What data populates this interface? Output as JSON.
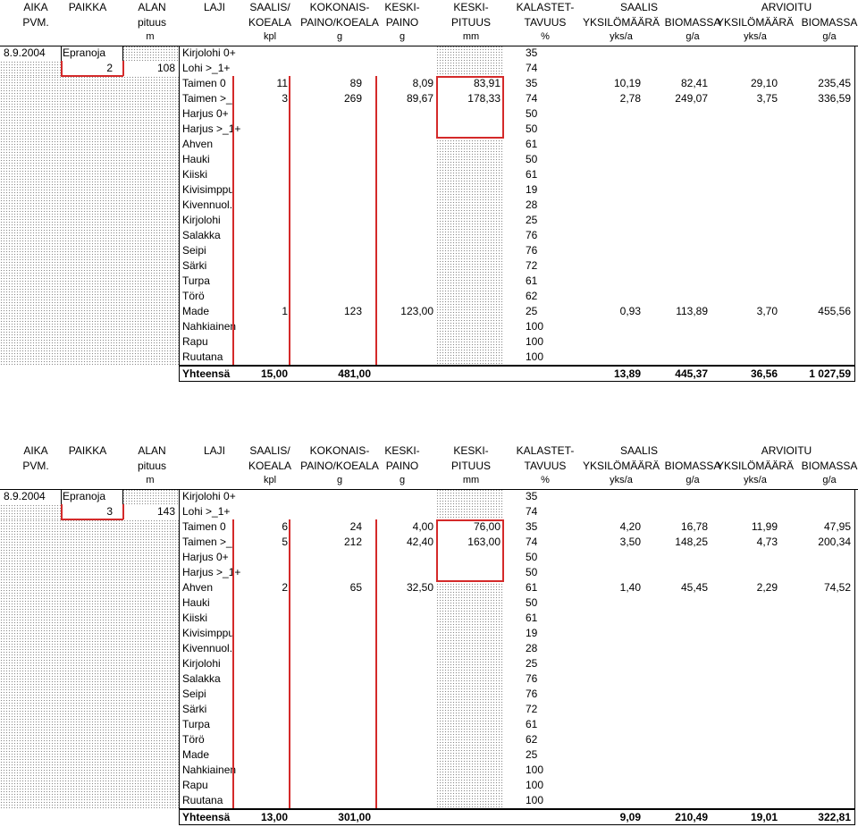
{
  "headers": {
    "row1": [
      "AIKA",
      "PAIKKA",
      "ALAN",
      "LAJI",
      "SAALIS/",
      "KOKONAIS-",
      "KESKI-",
      "KESKI-",
      "KALASTET-",
      "SAALIS",
      "ARVIOITU"
    ],
    "row2": [
      "PVM.",
      "pituus",
      "KOEALA",
      "PAINO/KOEALA",
      "PAINO",
      "PITUUS",
      "TAVUUS",
      "YKSILÖMÄÄRÄ",
      "BIOMASSA",
      "YKSILÖMÄÄRÄ",
      "BIOMASSA"
    ],
    "row3": [
      "m",
      "kpl",
      "g",
      "g",
      "mm",
      "%",
      "yks/a",
      "g/a",
      "yks/a",
      "g/a"
    ]
  },
  "sections": [
    {
      "date": "8.9.2004",
      "place": "Epranoja",
      "site_no": "2",
      "length": "108",
      "rows": [
        {
          "laji": "Kirjolohi 0+",
          "saalis": "",
          "kok": "",
          "paino": "",
          "pituus": "",
          "tavuus": "35",
          "y1": "",
          "b1": "",
          "y2": "",
          "b2": ""
        },
        {
          "laji": "Lohi >_1+",
          "saalis": "",
          "kok": "",
          "paino": "",
          "pituus": "",
          "tavuus": "74",
          "y1": "",
          "b1": "",
          "y2": "",
          "b2": ""
        },
        {
          "laji": "Taimen 0",
          "saalis": "11",
          "kok": "89",
          "paino": "8,09",
          "pituus": "83,91",
          "tavuus": "35",
          "y1": "10,19",
          "b1": "82,41",
          "y2": "29,10",
          "b2": "235,45"
        },
        {
          "laji": "Taimen >_",
          "saalis": "3",
          "kok": "269",
          "paino": "89,67",
          "pituus": "178,33",
          "tavuus": "74",
          "y1": "2,78",
          "b1": "249,07",
          "y2": "3,75",
          "b2": "336,59"
        },
        {
          "laji": "Harjus 0+",
          "saalis": "",
          "kok": "",
          "paino": "",
          "pituus": "",
          "tavuus": "50",
          "y1": "",
          "b1": "",
          "y2": "",
          "b2": ""
        },
        {
          "laji": "Harjus >_1+",
          "saalis": "",
          "kok": "",
          "paino": "",
          "pituus": "",
          "tavuus": "50",
          "y1": "",
          "b1": "",
          "y2": "",
          "b2": ""
        },
        {
          "laji": "Ahven",
          "saalis": "",
          "kok": "",
          "paino": "",
          "pituus": "",
          "tavuus": "61",
          "y1": "",
          "b1": "",
          "y2": "",
          "b2": ""
        },
        {
          "laji": "Hauki",
          "saalis": "",
          "kok": "",
          "paino": "",
          "pituus": "",
          "tavuus": "50",
          "y1": "",
          "b1": "",
          "y2": "",
          "b2": ""
        },
        {
          "laji": "Kiiski",
          "saalis": "",
          "kok": "",
          "paino": "",
          "pituus": "",
          "tavuus": "61",
          "y1": "",
          "b1": "",
          "y2": "",
          "b2": ""
        },
        {
          "laji": "Kivisimppu",
          "saalis": "",
          "kok": "",
          "paino": "",
          "pituus": "",
          "tavuus": "19",
          "y1": "",
          "b1": "",
          "y2": "",
          "b2": ""
        },
        {
          "laji": "Kivennuol.",
          "saalis": "",
          "kok": "",
          "paino": "",
          "pituus": "",
          "tavuus": "28",
          "y1": "",
          "b1": "",
          "y2": "",
          "b2": ""
        },
        {
          "laji": "Kirjolohi",
          "saalis": "",
          "kok": "",
          "paino": "",
          "pituus": "",
          "tavuus": "25",
          "y1": "",
          "b1": "",
          "y2": "",
          "b2": ""
        },
        {
          "laji": "Salakka",
          "saalis": "",
          "kok": "",
          "paino": "",
          "pituus": "",
          "tavuus": "76",
          "y1": "",
          "b1": "",
          "y2": "",
          "b2": ""
        },
        {
          "laji": "Seipi",
          "saalis": "",
          "kok": "",
          "paino": "",
          "pituus": "",
          "tavuus": "76",
          "y1": "",
          "b1": "",
          "y2": "",
          "b2": ""
        },
        {
          "laji": "Särki",
          "saalis": "",
          "kok": "",
          "paino": "",
          "pituus": "",
          "tavuus": "72",
          "y1": "",
          "b1": "",
          "y2": "",
          "b2": ""
        },
        {
          "laji": "Turpa",
          "saalis": "",
          "kok": "",
          "paino": "",
          "pituus": "",
          "tavuus": "61",
          "y1": "",
          "b1": "",
          "y2": "",
          "b2": ""
        },
        {
          "laji": "Törö",
          "saalis": "",
          "kok": "",
          "paino": "",
          "pituus": "",
          "tavuus": "62",
          "y1": "",
          "b1": "",
          "y2": "",
          "b2": ""
        },
        {
          "laji": "Made",
          "saalis": "1",
          "kok": "123",
          "paino": "123,00",
          "pituus": "",
          "tavuus": "25",
          "y1": "0,93",
          "b1": "113,89",
          "y2": "3,70",
          "b2": "455,56"
        },
        {
          "laji": "Nahkiainen",
          "saalis": "",
          "kok": "",
          "paino": "",
          "pituus": "",
          "tavuus": "100",
          "y1": "",
          "b1": "",
          "y2": "",
          "b2": ""
        },
        {
          "laji": "Rapu",
          "saalis": "",
          "kok": "",
          "paino": "",
          "pituus": "",
          "tavuus": "100",
          "y1": "",
          "b1": "",
          "y2": "",
          "b2": ""
        },
        {
          "laji": "Ruutana",
          "saalis": "",
          "kok": "",
          "paino": "",
          "pituus": "",
          "tavuus": "100",
          "y1": "",
          "b1": "",
          "y2": "",
          "b2": ""
        }
      ],
      "total": {
        "label": "Yhteensä",
        "saalis": "15,00",
        "kok": "481,00",
        "y1": "13,89",
        "b1": "445,37",
        "y2": "36,56",
        "b2": "1 027,59"
      }
    },
    {
      "date": "8.9.2004",
      "place": "Epranoja",
      "site_no": "3",
      "length": "143",
      "rows": [
        {
          "laji": "Kirjolohi 0+",
          "saalis": "",
          "kok": "",
          "paino": "",
          "pituus": "",
          "tavuus": "35",
          "y1": "",
          "b1": "",
          "y2": "",
          "b2": ""
        },
        {
          "laji": "Lohi >_1+",
          "saalis": "",
          "kok": "",
          "paino": "",
          "pituus": "",
          "tavuus": "74",
          "y1": "",
          "b1": "",
          "y2": "",
          "b2": ""
        },
        {
          "laji": "Taimen 0",
          "saalis": "6",
          "kok": "24",
          "paino": "4,00",
          "pituus": "76,00",
          "tavuus": "35",
          "y1": "4,20",
          "b1": "16,78",
          "y2": "11,99",
          "b2": "47,95"
        },
        {
          "laji": "Taimen >_",
          "saalis": "5",
          "kok": "212",
          "paino": "42,40",
          "pituus": "163,00",
          "tavuus": "74",
          "y1": "3,50",
          "b1": "148,25",
          "y2": "4,73",
          "b2": "200,34"
        },
        {
          "laji": "Harjus 0+",
          "saalis": "",
          "kok": "",
          "paino": "",
          "pituus": "",
          "tavuus": "50",
          "y1": "",
          "b1": "",
          "y2": "",
          "b2": ""
        },
        {
          "laji": "Harjus >_1+",
          "saalis": "",
          "kok": "",
          "paino": "",
          "pituus": "",
          "tavuus": "50",
          "y1": "",
          "b1": "",
          "y2": "",
          "b2": ""
        },
        {
          "laji": "Ahven",
          "saalis": "2",
          "kok": "65",
          "paino": "32,50",
          "pituus": "",
          "tavuus": "61",
          "y1": "1,40",
          "b1": "45,45",
          "y2": "2,29",
          "b2": "74,52"
        },
        {
          "laji": "Hauki",
          "saalis": "",
          "kok": "",
          "paino": "",
          "pituus": "",
          "tavuus": "50",
          "y1": "",
          "b1": "",
          "y2": "",
          "b2": ""
        },
        {
          "laji": "Kiiski",
          "saalis": "",
          "kok": "",
          "paino": "",
          "pituus": "",
          "tavuus": "61",
          "y1": "",
          "b1": "",
          "y2": "",
          "b2": ""
        },
        {
          "laji": "Kivisimppu",
          "saalis": "",
          "kok": "",
          "paino": "",
          "pituus": "",
          "tavuus": "19",
          "y1": "",
          "b1": "",
          "y2": "",
          "b2": ""
        },
        {
          "laji": "Kivennuol.",
          "saalis": "",
          "kok": "",
          "paino": "",
          "pituus": "",
          "tavuus": "28",
          "y1": "",
          "b1": "",
          "y2": "",
          "b2": ""
        },
        {
          "laji": "Kirjolohi",
          "saalis": "",
          "kok": "",
          "paino": "",
          "pituus": "",
          "tavuus": "25",
          "y1": "",
          "b1": "",
          "y2": "",
          "b2": ""
        },
        {
          "laji": "Salakka",
          "saalis": "",
          "kok": "",
          "paino": "",
          "pituus": "",
          "tavuus": "76",
          "y1": "",
          "b1": "",
          "y2": "",
          "b2": ""
        },
        {
          "laji": "Seipi",
          "saalis": "",
          "kok": "",
          "paino": "",
          "pituus": "",
          "tavuus": "76",
          "y1": "",
          "b1": "",
          "y2": "",
          "b2": ""
        },
        {
          "laji": "Särki",
          "saalis": "",
          "kok": "",
          "paino": "",
          "pituus": "",
          "tavuus": "72",
          "y1": "",
          "b1": "",
          "y2": "",
          "b2": ""
        },
        {
          "laji": "Turpa",
          "saalis": "",
          "kok": "",
          "paino": "",
          "pituus": "",
          "tavuus": "61",
          "y1": "",
          "b1": "",
          "y2": "",
          "b2": ""
        },
        {
          "laji": "Törö",
          "saalis": "",
          "kok": "",
          "paino": "",
          "pituus": "",
          "tavuus": "62",
          "y1": "",
          "b1": "",
          "y2": "",
          "b2": ""
        },
        {
          "laji": "Made",
          "saalis": "",
          "kok": "",
          "paino": "",
          "pituus": "",
          "tavuus": "25",
          "y1": "",
          "b1": "",
          "y2": "",
          "b2": ""
        },
        {
          "laji": "Nahkiainen",
          "saalis": "",
          "kok": "",
          "paino": "",
          "pituus": "",
          "tavuus": "100",
          "y1": "",
          "b1": "",
          "y2": "",
          "b2": ""
        },
        {
          "laji": "Rapu",
          "saalis": "",
          "kok": "",
          "paino": "",
          "pituus": "",
          "tavuus": "100",
          "y1": "",
          "b1": "",
          "y2": "",
          "b2": ""
        },
        {
          "laji": "Ruutana",
          "saalis": "",
          "kok": "",
          "paino": "",
          "pituus": "",
          "tavuus": "100",
          "y1": "",
          "b1": "",
          "y2": "",
          "b2": ""
        }
      ],
      "total": {
        "label": "Yhteensä",
        "saalis": "13,00",
        "kok": "301,00",
        "y1": "9,09",
        "b1": "210,49",
        "y2": "19,01",
        "b2": "322,81"
      }
    }
  ]
}
